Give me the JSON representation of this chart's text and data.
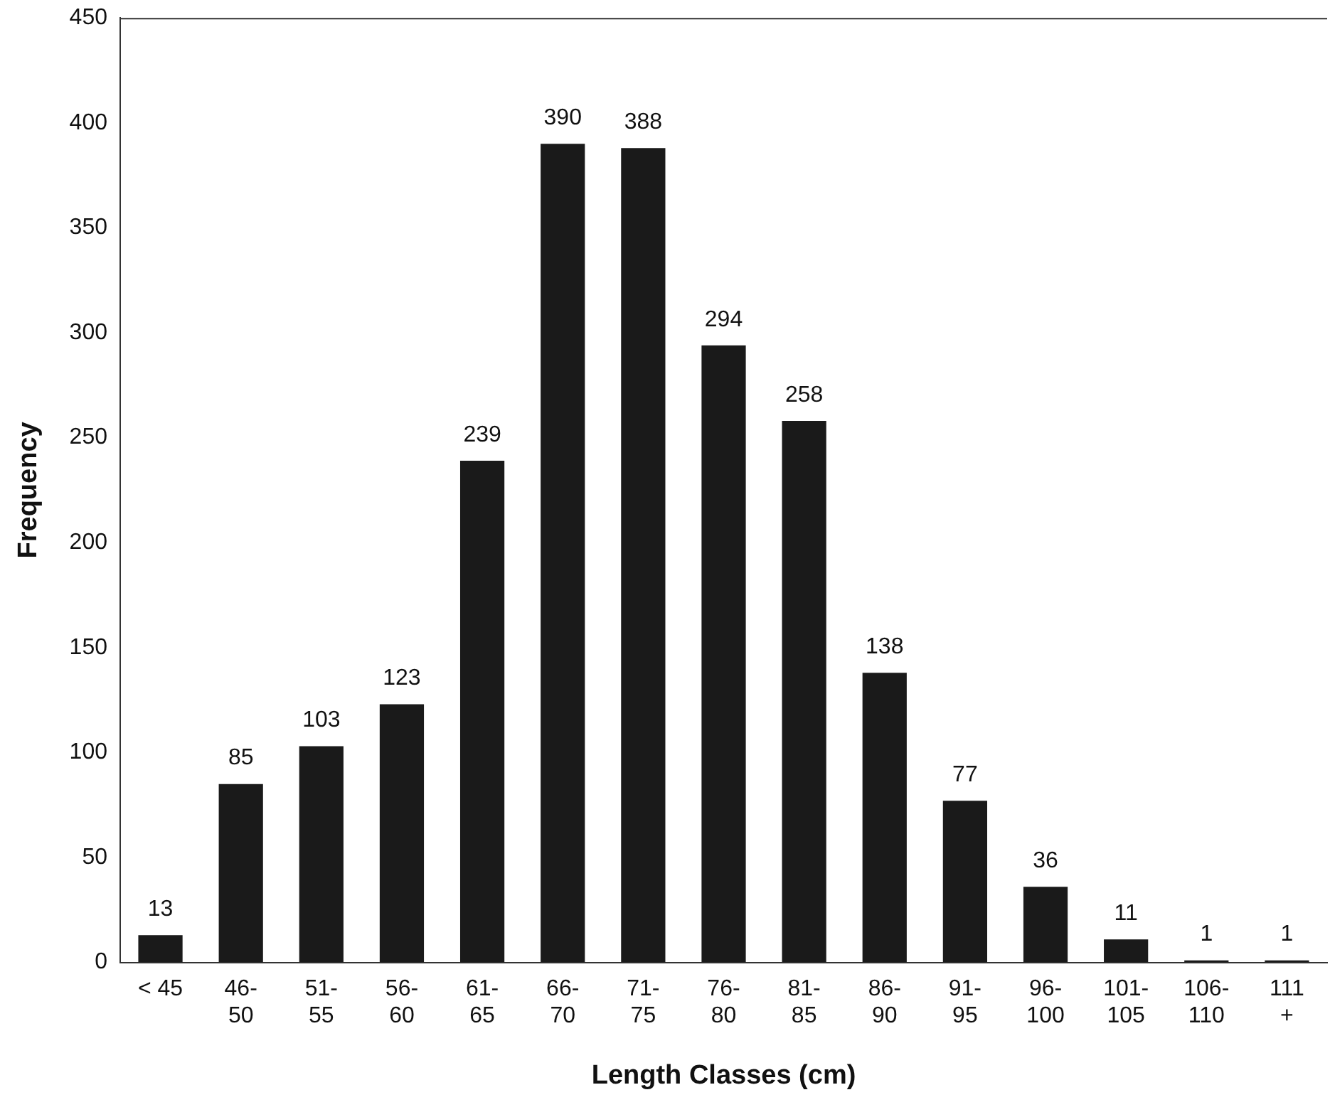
{
  "chart_data": {
    "type": "bar",
    "xlabel": "Length Classes (cm)",
    "ylabel": "Frequency",
    "categories": [
      "< 45",
      "46-50",
      "51-55",
      "56-60",
      "61-65",
      "66-70",
      "71-75",
      "76-80",
      "81-85",
      "86-90",
      "91-95",
      "96-100",
      "101-105",
      "106-110",
      "111 +"
    ],
    "values": [
      13,
      85,
      103,
      123,
      239,
      390,
      388,
      294,
      258,
      138,
      77,
      36,
      11,
      1,
      1
    ],
    "color": "#1a1a1a",
    "ylim": [
      0,
      450
    ],
    "yticks": [
      0,
      50,
      100,
      150,
      200,
      250,
      300,
      350,
      400,
      450
    ],
    "grid": false,
    "legend": false,
    "data_labels": true
  }
}
